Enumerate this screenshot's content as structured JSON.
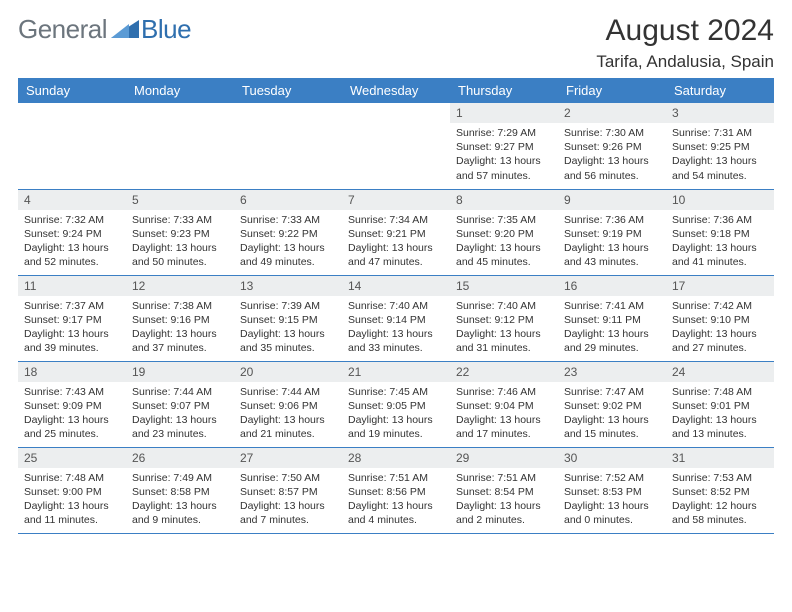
{
  "brand": {
    "general": "General",
    "blue": "Blue"
  },
  "title": "August 2024",
  "location": "Tarifa, Andalusia, Spain",
  "colors": {
    "header_bg": "#3b7fc4",
    "header_text": "#ffffff",
    "daynum_bg": "#eceeef",
    "row_border": "#3b7fc4",
    "logo_gray": "#6c757d",
    "logo_blue": "#2f6fae",
    "text": "#333333",
    "background": "#ffffff"
  },
  "typography": {
    "month_fontsize": 30,
    "location_fontsize": 17,
    "dayheader_fontsize": 13,
    "daynum_fontsize": 12,
    "info_fontsize": 10.5
  },
  "layout": {
    "columns": 7,
    "rows": 5
  },
  "dayHeaders": [
    "Sunday",
    "Monday",
    "Tuesday",
    "Wednesday",
    "Thursday",
    "Friday",
    "Saturday"
  ],
  "weeks": [
    [
      {
        "empty": true
      },
      {
        "empty": true
      },
      {
        "empty": true
      },
      {
        "empty": true
      },
      {
        "day": "1",
        "sunrise": "7:29 AM",
        "sunset": "9:27 PM",
        "daylight": "13 hours and 57 minutes."
      },
      {
        "day": "2",
        "sunrise": "7:30 AM",
        "sunset": "9:26 PM",
        "daylight": "13 hours and 56 minutes."
      },
      {
        "day": "3",
        "sunrise": "7:31 AM",
        "sunset": "9:25 PM",
        "daylight": "13 hours and 54 minutes."
      }
    ],
    [
      {
        "day": "4",
        "sunrise": "7:32 AM",
        "sunset": "9:24 PM",
        "daylight": "13 hours and 52 minutes."
      },
      {
        "day": "5",
        "sunrise": "7:33 AM",
        "sunset": "9:23 PM",
        "daylight": "13 hours and 50 minutes."
      },
      {
        "day": "6",
        "sunrise": "7:33 AM",
        "sunset": "9:22 PM",
        "daylight": "13 hours and 49 minutes."
      },
      {
        "day": "7",
        "sunrise": "7:34 AM",
        "sunset": "9:21 PM",
        "daylight": "13 hours and 47 minutes."
      },
      {
        "day": "8",
        "sunrise": "7:35 AM",
        "sunset": "9:20 PM",
        "daylight": "13 hours and 45 minutes."
      },
      {
        "day": "9",
        "sunrise": "7:36 AM",
        "sunset": "9:19 PM",
        "daylight": "13 hours and 43 minutes."
      },
      {
        "day": "10",
        "sunrise": "7:36 AM",
        "sunset": "9:18 PM",
        "daylight": "13 hours and 41 minutes."
      }
    ],
    [
      {
        "day": "11",
        "sunrise": "7:37 AM",
        "sunset": "9:17 PM",
        "daylight": "13 hours and 39 minutes."
      },
      {
        "day": "12",
        "sunrise": "7:38 AM",
        "sunset": "9:16 PM",
        "daylight": "13 hours and 37 minutes."
      },
      {
        "day": "13",
        "sunrise": "7:39 AM",
        "sunset": "9:15 PM",
        "daylight": "13 hours and 35 minutes."
      },
      {
        "day": "14",
        "sunrise": "7:40 AM",
        "sunset": "9:14 PM",
        "daylight": "13 hours and 33 minutes."
      },
      {
        "day": "15",
        "sunrise": "7:40 AM",
        "sunset": "9:12 PM",
        "daylight": "13 hours and 31 minutes."
      },
      {
        "day": "16",
        "sunrise": "7:41 AM",
        "sunset": "9:11 PM",
        "daylight": "13 hours and 29 minutes."
      },
      {
        "day": "17",
        "sunrise": "7:42 AM",
        "sunset": "9:10 PM",
        "daylight": "13 hours and 27 minutes."
      }
    ],
    [
      {
        "day": "18",
        "sunrise": "7:43 AM",
        "sunset": "9:09 PM",
        "daylight": "13 hours and 25 minutes."
      },
      {
        "day": "19",
        "sunrise": "7:44 AM",
        "sunset": "9:07 PM",
        "daylight": "13 hours and 23 minutes."
      },
      {
        "day": "20",
        "sunrise": "7:44 AM",
        "sunset": "9:06 PM",
        "daylight": "13 hours and 21 minutes."
      },
      {
        "day": "21",
        "sunrise": "7:45 AM",
        "sunset": "9:05 PM",
        "daylight": "13 hours and 19 minutes."
      },
      {
        "day": "22",
        "sunrise": "7:46 AM",
        "sunset": "9:04 PM",
        "daylight": "13 hours and 17 minutes."
      },
      {
        "day": "23",
        "sunrise": "7:47 AM",
        "sunset": "9:02 PM",
        "daylight": "13 hours and 15 minutes."
      },
      {
        "day": "24",
        "sunrise": "7:48 AM",
        "sunset": "9:01 PM",
        "daylight": "13 hours and 13 minutes."
      }
    ],
    [
      {
        "day": "25",
        "sunrise": "7:48 AM",
        "sunset": "9:00 PM",
        "daylight": "13 hours and 11 minutes."
      },
      {
        "day": "26",
        "sunrise": "7:49 AM",
        "sunset": "8:58 PM",
        "daylight": "13 hours and 9 minutes."
      },
      {
        "day": "27",
        "sunrise": "7:50 AM",
        "sunset": "8:57 PM",
        "daylight": "13 hours and 7 minutes."
      },
      {
        "day": "28",
        "sunrise": "7:51 AM",
        "sunset": "8:56 PM",
        "daylight": "13 hours and 4 minutes."
      },
      {
        "day": "29",
        "sunrise": "7:51 AM",
        "sunset": "8:54 PM",
        "daylight": "13 hours and 2 minutes."
      },
      {
        "day": "30",
        "sunrise": "7:52 AM",
        "sunset": "8:53 PM",
        "daylight": "13 hours and 0 minutes."
      },
      {
        "day": "31",
        "sunrise": "7:53 AM",
        "sunset": "8:52 PM",
        "daylight": "12 hours and 58 minutes."
      }
    ]
  ],
  "labels": {
    "sunrise": "Sunrise:",
    "sunset": "Sunset:",
    "daylight": "Daylight:"
  }
}
